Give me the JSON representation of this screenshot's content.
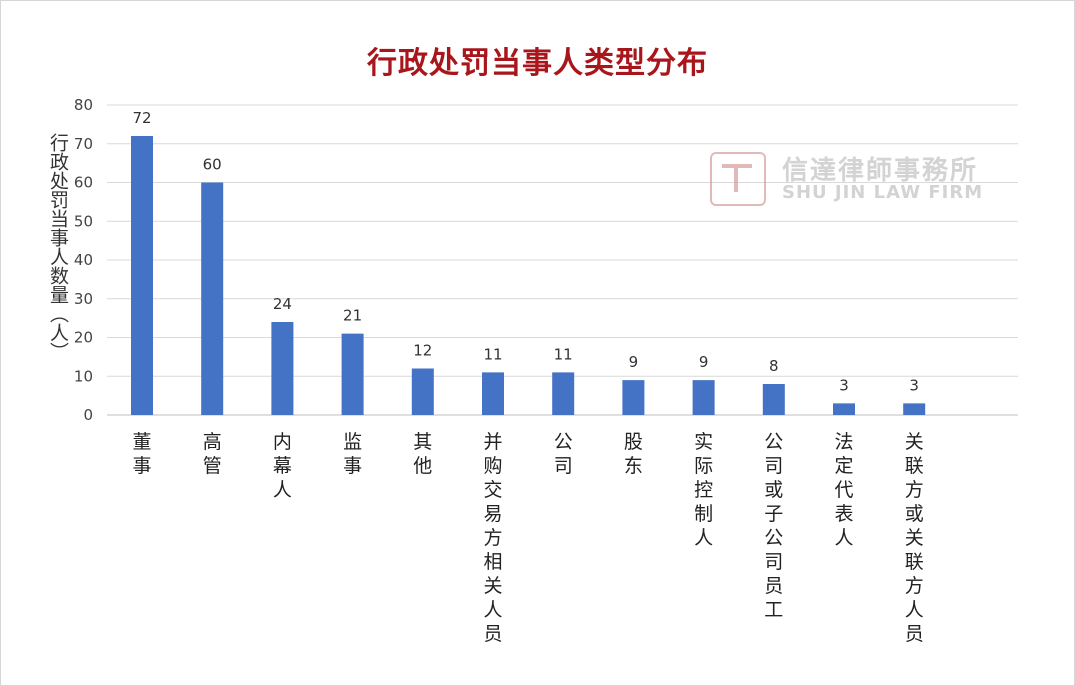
{
  "chart_data": {
    "type": "bar",
    "title": "行政处罚当事人类型分布",
    "xlabel": "",
    "ylabel": "行政处罚当事人数量（人）",
    "ylim": [
      0,
      80
    ],
    "yticks": [
      0,
      10,
      20,
      30,
      40,
      50,
      60,
      70,
      80
    ],
    "grid": true,
    "legend": "none",
    "bar_color": "#4472c4",
    "categories": [
      "董事",
      "高管",
      "内幕人",
      "监事",
      "其他",
      "并购交易方相关人员",
      "公司",
      "股东",
      "实际控制人",
      "公司或子公司员工",
      "法定代表人",
      "关联方或关联方人员"
    ],
    "values": [
      72,
      60,
      24,
      21,
      12,
      11,
      11,
      9,
      9,
      8,
      3,
      3
    ]
  },
  "watermark": {
    "name_cn": "信達律師事務所",
    "name_en": "SHU JIN LAW FIRM"
  }
}
